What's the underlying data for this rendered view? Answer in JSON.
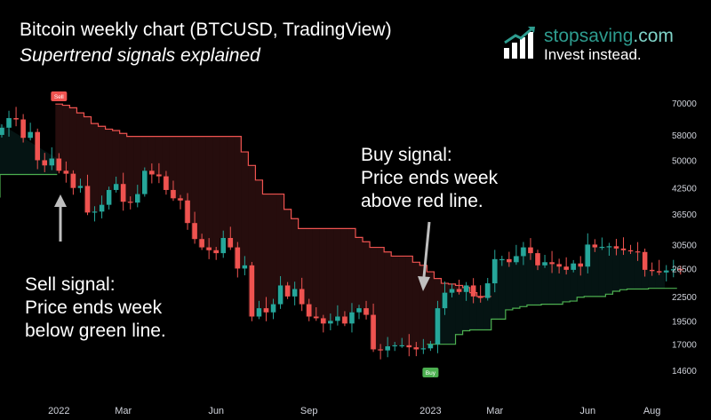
{
  "header": {
    "title": "Bitcoin weekly chart (BTCUSD, TradingView)",
    "subtitle": "Supertrend signals explained"
  },
  "brand": {
    "name": "stopsaving",
    "suffix": ".com",
    "tagline": "Invest instead.",
    "logo_icon": "bar-chart-arrow-icon",
    "color": "#2e9c8f"
  },
  "annotations": {
    "sell": [
      "Sell signal:",
      "Price ends week",
      "below green line."
    ],
    "buy": [
      "Buy signal:",
      "Price ends week",
      "above red line."
    ]
  },
  "chart_data": {
    "type": "candlestick",
    "y_scale": "log",
    "ylim": [
      13500,
      76000
    ],
    "y_ticks": [
      70000,
      58000,
      50000,
      42500,
      36500,
      30500,
      26500,
      22500,
      19500,
      17000,
      14600
    ],
    "x_ticks": [
      "2022",
      "Mar",
      "Jun",
      "Sep",
      "2023",
      "Mar",
      "Jun",
      "Aug"
    ],
    "x_tick_week_index": [
      8,
      17,
      30,
      43,
      60,
      69,
      82,
      91
    ],
    "up_color": "#26a69a",
    "down_color": "#ef5350",
    "week_closes": [
      60500,
      64000,
      63500,
      57000,
      59000,
      50000,
      48500,
      50500,
      47000,
      46200,
      42500,
      43000,
      36800,
      37000,
      38500,
      42000,
      43500,
      39200,
      39000,
      41000,
      47000,
      46000,
      45500,
      42000,
      40000,
      39500,
      34600,
      31500,
      30000,
      29500,
      29000,
      31700,
      30000,
      26500,
      27000,
      20000,
      21000,
      20500,
      21500,
      24000,
      22500,
      23500,
      21500,
      20000,
      19800,
      19200,
      19500,
      20000,
      19200,
      20500,
      21000,
      20200,
      16500,
      16400,
      16800,
      16900,
      16900,
      16700,
      16500,
      16600,
      17000,
      21000,
      23000,
      23500,
      23100,
      24000,
      22500,
      22300,
      24300,
      28000,
      28000,
      27500,
      28500,
      30000,
      29000,
      27000,
      27500,
      27200,
      26800,
      26300,
      27300,
      26800,
      30500,
      30000,
      30100,
      30200,
      29800,
      29500,
      29300,
      29200,
      26300,
      26100,
      25900,
      26200,
      26400,
      26300
    ],
    "supertrend": {
      "green_line_before": 46000,
      "red_line_levels": [
        69500,
        69000,
        68000,
        66000,
        64500,
        62000,
        61000,
        60000,
        59500,
        58500,
        57500,
        57500,
        57500,
        57500,
        57500,
        57500,
        57500,
        57500,
        57500,
        57500,
        57500,
        57500,
        57500,
        57500,
        57500,
        57500,
        52500,
        48500,
        44500,
        41000,
        41000,
        41000,
        37500,
        35500,
        33500,
        33500,
        33500,
        33500,
        33500,
        33500,
        33500,
        33500,
        31800,
        31000,
        30000,
        30000,
        29200,
        28500,
        28500,
        28500,
        27500,
        27000,
        26000,
        25000,
        24300,
        24200,
        24000,
        23700,
        23000,
        22500,
        22500
      ],
      "green_line_levels": [
        17000,
        17000,
        17000,
        17000,
        18000,
        18400,
        18500,
        18500,
        18500,
        19700,
        19700,
        20800,
        21000,
        21200,
        21400,
        21400,
        21500,
        21500,
        21500,
        21800,
        21900,
        22400,
        22500,
        22500,
        22500,
        22800,
        23200,
        23400,
        23500,
        23500,
        23500,
        23600,
        23600,
        23600,
        23600,
        23600
      ]
    },
    "signals": [
      {
        "label": "Sell",
        "week_index": 8
      },
      {
        "label": "Buy",
        "week_index": 60
      }
    ]
  }
}
